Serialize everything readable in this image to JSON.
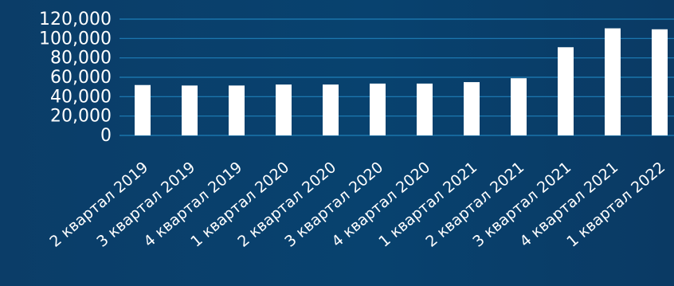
{
  "chart_data": {
    "type": "bar",
    "title": "",
    "xlabel": "",
    "ylabel": "",
    "ylim": [
      0,
      120000
    ],
    "yticks": [
      "0",
      "20,000",
      "40,000",
      "60,000",
      "80,000",
      "100,000",
      "120,000"
    ],
    "grid": true,
    "categories": [
      "2 квартал 2019",
      "3 квартал 2019",
      "4 квартал 2019",
      "1 квартал 2020",
      "2 квартал 2020",
      "3 квартал 2020",
      "4 квартал 2020",
      "1 квартал 2021",
      "2 квартал 2021",
      "3 квартал 2021",
      "4 квартал 2021",
      "1 квартал 2022"
    ],
    "values": [
      52000,
      51500,
      51500,
      52500,
      52500,
      53500,
      53500,
      55000,
      59000,
      91000,
      110500,
      109500
    ],
    "colors": {
      "bar": "#ffffff",
      "grid": "#1f7fb8",
      "text": "#ffffff"
    }
  }
}
